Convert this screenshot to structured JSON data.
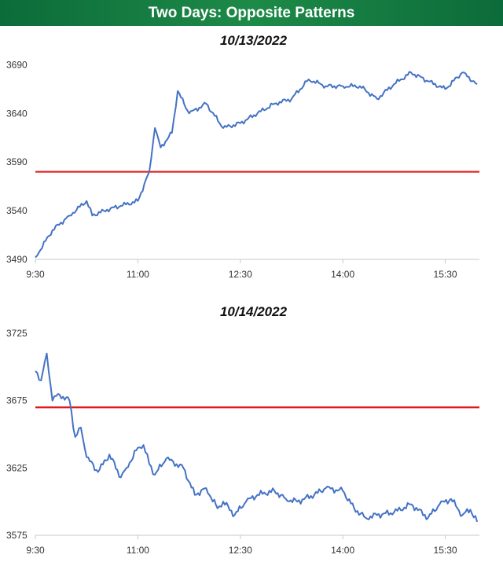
{
  "header": {
    "title": "Two Days: Opposite Patterns"
  },
  "colors": {
    "banner": "#1d8a47",
    "line": "#4472c4",
    "ref": "#e0191b",
    "axis": "#c8c8c8"
  },
  "chart_data": [
    {
      "type": "line",
      "title": "10/13/2022",
      "x_ticks": [
        "9:30",
        "11:00",
        "12:30",
        "14:00",
        "15:30"
      ],
      "y_ticks": [
        3490,
        3540,
        3590,
        3640,
        3690
      ],
      "ylim": [
        3490,
        3700
      ],
      "reference_line": 3580,
      "x": [
        "9:30",
        "9:45",
        "10:00",
        "10:15",
        "10:20",
        "10:30",
        "10:45",
        "11:00",
        "11:10",
        "11:15",
        "11:20",
        "11:30",
        "11:35",
        "11:45",
        "12:00",
        "12:15",
        "12:30",
        "12:45",
        "13:00",
        "13:15",
        "13:30",
        "13:45",
        "14:00",
        "14:15",
        "14:30",
        "14:45",
        "15:00",
        "15:15",
        "15:30",
        "15:45",
        "15:58"
      ],
      "series": [
        {
          "values": [
            3492,
            3520,
            3535,
            3550,
            3535,
            3540,
            3545,
            3550,
            3580,
            3625,
            3605,
            3620,
            3663,
            3640,
            3650,
            3625,
            3630,
            3640,
            3650,
            3655,
            3675,
            3668,
            3668,
            3668,
            3655,
            3670,
            3682,
            3673,
            3665,
            3682,
            3670
          ]
        }
      ]
    },
    {
      "type": "line",
      "title": "10/14/2022",
      "x_ticks": [
        "9:30",
        "11:00",
        "12:30",
        "14:00",
        "15:30"
      ],
      "y_ticks": [
        3575,
        3625,
        3675,
        3725
      ],
      "ylim": [
        3575,
        3725
      ],
      "reference_line": 3670,
      "x": [
        "9:30",
        "9:35",
        "9:40",
        "9:45",
        "9:50",
        "10:00",
        "10:05",
        "10:10",
        "10:15",
        "10:25",
        "10:35",
        "10:45",
        "10:50",
        "11:00",
        "11:05",
        "11:10",
        "11:15",
        "11:25",
        "11:40",
        "11:50",
        "12:00",
        "12:10",
        "12:15",
        "12:25",
        "12:35",
        "12:45",
        "13:00",
        "13:10",
        "13:20",
        "13:35",
        "13:45",
        "14:00",
        "14:10",
        "14:20",
        "14:30",
        "14:45",
        "15:00",
        "15:15",
        "15:25",
        "15:35",
        "15:45",
        "15:52",
        "15:58"
      ],
      "series": [
        {
          "values": [
            3697,
            3690,
            3710,
            3675,
            3680,
            3675,
            3648,
            3655,
            3633,
            3622,
            3635,
            3618,
            3625,
            3640,
            3642,
            3628,
            3620,
            3632,
            3625,
            3605,
            3610,
            3595,
            3600,
            3590,
            3600,
            3605,
            3608,
            3602,
            3600,
            3605,
            3610,
            3608,
            3595,
            3588,
            3590,
            3592,
            3598,
            3588,
            3598,
            3602,
            3590,
            3594,
            3585
          ]
        }
      ]
    }
  ]
}
